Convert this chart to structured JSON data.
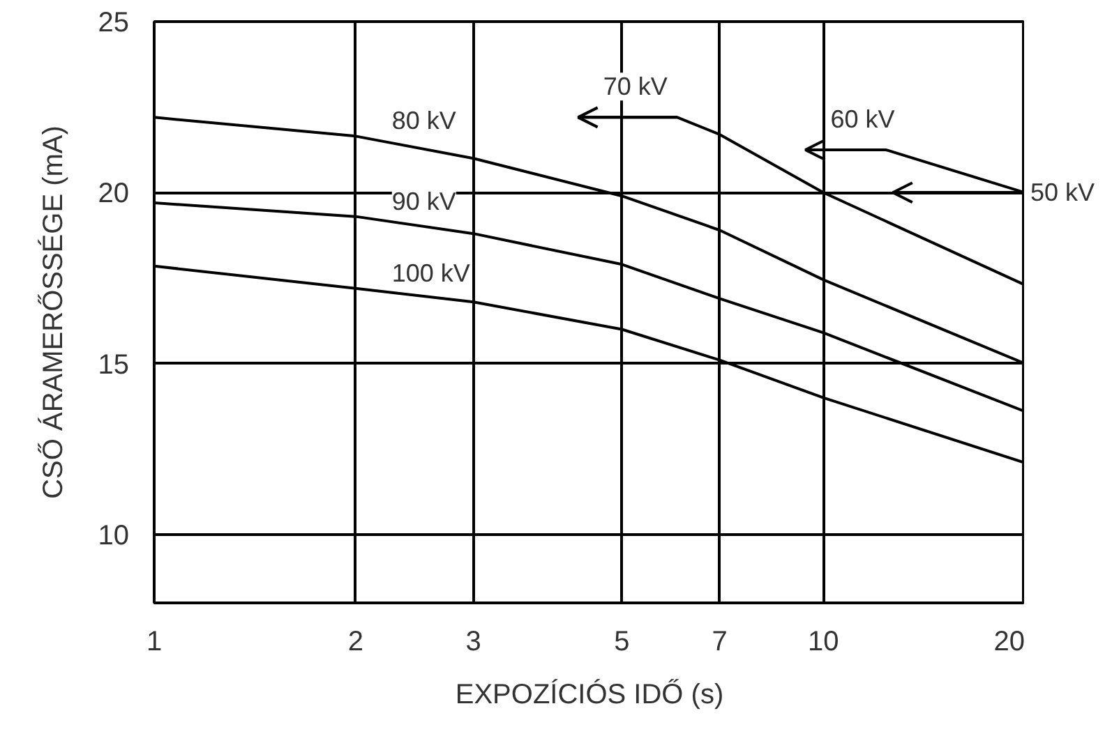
{
  "chart_data": {
    "type": "line",
    "xlabel": "EXPOZÍCIÓS IDŐ (s)",
    "ylabel": "CSŐ ÁRAMERŐSSÉGE (mA)",
    "log": "x",
    "xlim": [
      1,
      20
    ],
    "ylim": [
      8,
      25
    ],
    "xticks": [
      1,
      2,
      3,
      5,
      7,
      10,
      20
    ],
    "yticks": [
      10,
      15,
      20,
      25
    ],
    "grid": true,
    "marker": "none",
    "line_style": "solid",
    "series": [
      {
        "name": "80 kV",
        "color": "#000000",
        "x": [
          1,
          2,
          3,
          5,
          7,
          10,
          20
        ],
        "values": [
          22.2,
          21.65,
          21.0,
          19.9,
          18.9,
          17.45,
          15.0
        ]
      },
      {
        "name": "90 kV",
        "color": "#000000",
        "x": [
          1,
          2,
          3,
          5,
          7,
          10,
          20
        ],
        "values": [
          19.7,
          19.3,
          18.8,
          17.9,
          16.9,
          15.9,
          13.6
        ]
      },
      {
        "name": "100 kV",
        "color": "#000000",
        "x": [
          1,
          2,
          3,
          5,
          7,
          10,
          20
        ],
        "values": [
          17.85,
          17.2,
          16.8,
          16.0,
          15.1,
          14.0,
          12.1
        ]
      },
      {
        "name": "70 kV",
        "color": "#000000",
        "x": [
          4.3,
          6.05,
          7,
          10,
          20
        ],
        "values": [
          22.2,
          22.2,
          21.7,
          20.0,
          17.3
        ]
      },
      {
        "name": "60 kV",
        "color": "#000000",
        "x": [
          9.4,
          12.4,
          20
        ],
        "values": [
          21.25,
          21.25,
          20.0
        ]
      },
      {
        "name": "50 kV",
        "color": "#000000",
        "x": [
          12.7,
          20
        ],
        "values": [
          20.0,
          20.0
        ]
      }
    ]
  }
}
